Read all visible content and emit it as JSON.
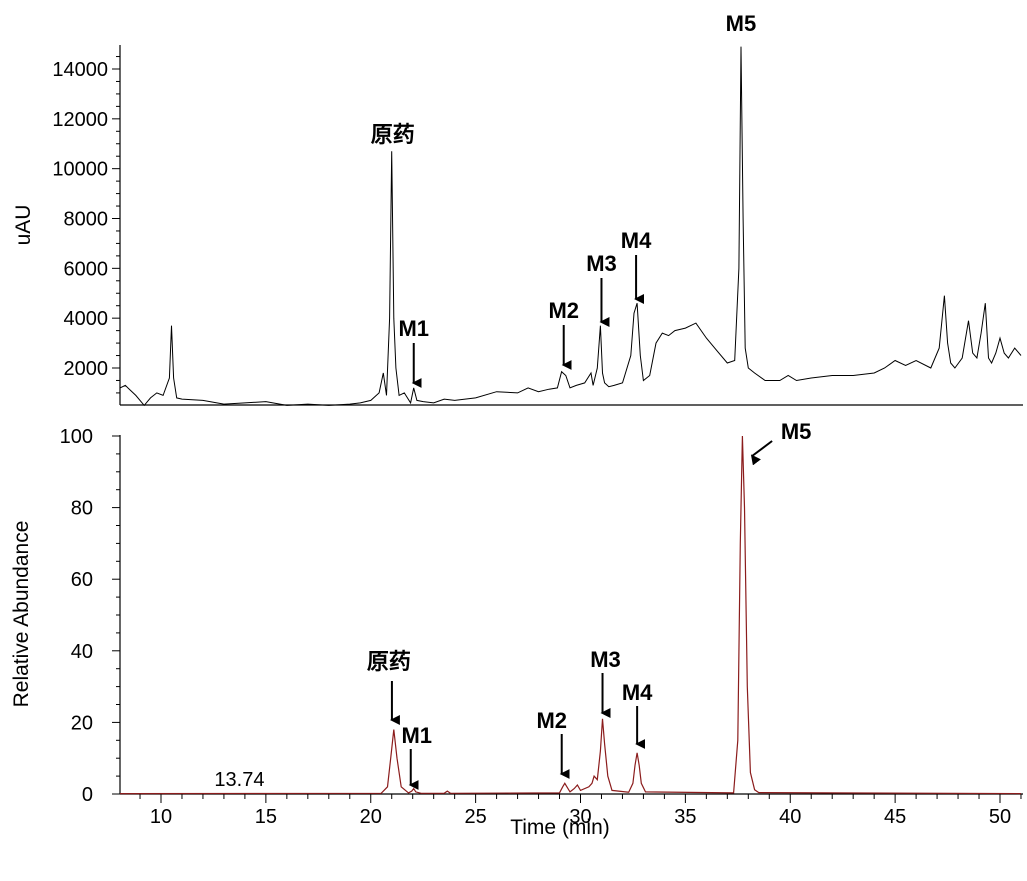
{
  "chart_data": [
    {
      "type": "line",
      "name": "uv-chromatogram",
      "ylabel": "uAU",
      "xlim": [
        7.8,
        51
      ],
      "ylim": [
        0,
        15000
      ],
      "yticks": [
        2000,
        4000,
        6000,
        8000,
        10000,
        12000,
        14000
      ],
      "yticklabels": [
        "2000",
        "4000",
        "6000",
        "8000",
        "10000",
        "12000",
        "14000"
      ],
      "line_color": "#000000",
      "series": [
        {
          "x": [
            7.8,
            8.3,
            8.8,
            9.2,
            9.5,
            9.8,
            10.1,
            10.4,
            10.5,
            10.6,
            10.75,
            11.0,
            12.0,
            13.0,
            14.0,
            15.0,
            16.0,
            17.0,
            18.0,
            19.0,
            19.5,
            20.0,
            20.4,
            20.6,
            20.75,
            20.9,
            21.0,
            21.1,
            21.2,
            21.35,
            21.6,
            21.9,
            22.05,
            22.2,
            22.5,
            23.0,
            23.5,
            24.0,
            25.0,
            26.0,
            27.0,
            27.5,
            28.0,
            28.5,
            28.9,
            29.1,
            29.3,
            29.5,
            29.8,
            30.2,
            30.5,
            30.6,
            30.8,
            30.95,
            31.05,
            31.15,
            31.35,
            31.6,
            32.0,
            32.4,
            32.55,
            32.7,
            32.85,
            33.0,
            33.3,
            33.6,
            33.9,
            34.2,
            34.5,
            35.0,
            35.5,
            36.0,
            36.5,
            37.0,
            37.35,
            37.55,
            37.65,
            37.75,
            37.85,
            38.0,
            38.3,
            38.8,
            39.5,
            39.9,
            40.3,
            41.0,
            42.0,
            43.0,
            44.0,
            44.5,
            45.0,
            45.5,
            46.0,
            46.7,
            47.1,
            47.35,
            47.5,
            47.65,
            47.85,
            48.2,
            48.5,
            48.7,
            48.9,
            49.1,
            49.3,
            49.45,
            49.6,
            49.8,
            50.0,
            50.2,
            50.4,
            50.7,
            51.0
          ],
          "y": [
            1200,
            1300,
            900,
            500,
            800,
            1000,
            900,
            1600,
            3700,
            1600,
            800,
            750,
            700,
            550,
            600,
            650,
            500,
            550,
            500,
            550,
            600,
            700,
            1000,
            1800,
            900,
            4000,
            10700,
            4000,
            2000,
            900,
            1000,
            600,
            1200,
            700,
            650,
            600,
            750,
            700,
            800,
            1050,
            1000,
            1200,
            1050,
            1150,
            1200,
            1850,
            1700,
            1200,
            1300,
            1400,
            1800,
            1300,
            2000,
            3700,
            1800,
            1400,
            1250,
            1300,
            1400,
            2500,
            4200,
            4600,
            2500,
            1500,
            1700,
            3000,
            3400,
            3300,
            3500,
            3600,
            3800,
            3200,
            2700,
            2200,
            2300,
            6000,
            14900,
            8000,
            2800,
            2000,
            1800,
            1500,
            1500,
            1700,
            1500,
            1600,
            1700,
            1700,
            1800,
            2000,
            2300,
            2100,
            2300,
            2000,
            2800,
            4900,
            3000,
            2200,
            2000,
            2400,
            3900,
            2600,
            2400,
            3400,
            4600,
            2400,
            2200,
            2600,
            3200,
            2600,
            2400,
            2800,
            2500
          ]
        }
      ],
      "annotations": [
        {
          "label": "原药",
          "x": 21.05,
          "arrow": false
        },
        {
          "label": "M1",
          "x": 22.05,
          "arrow": true
        },
        {
          "label": "M2",
          "x": 29.2,
          "arrow": true
        },
        {
          "label": "M3",
          "x": 31.0,
          "arrow": true
        },
        {
          "label": "M4",
          "x": 32.65,
          "arrow": true
        },
        {
          "label": "M5",
          "x": 37.65,
          "arrow": false
        }
      ]
    },
    {
      "type": "line",
      "name": "ms-chromatogram",
      "xlabel": "Time (min)",
      "ylabel": "Relative Abundance",
      "xlim": [
        7.8,
        51
      ],
      "ylim": [
        0,
        100
      ],
      "xticks": [
        10,
        15,
        20,
        25,
        30,
        35,
        40,
        45,
        50
      ],
      "xticklabels": [
        "10",
        "15",
        "20",
        "25",
        "30",
        "35",
        "40",
        "45",
        "50"
      ],
      "yticks": [
        0,
        20,
        40,
        60,
        80,
        100
      ],
      "yticklabels": [
        "0",
        "20",
        "40",
        "60",
        "80",
        "100"
      ],
      "line_color": "#8b1c1c",
      "series": [
        {
          "x": [
            7.8,
            20.5,
            20.8,
            20.95,
            21.1,
            21.25,
            21.45,
            21.8,
            21.95,
            22.05,
            22.15,
            22.4,
            23.5,
            23.65,
            23.8,
            29.0,
            29.15,
            29.25,
            29.35,
            29.5,
            29.7,
            29.85,
            30.0,
            30.4,
            30.55,
            30.65,
            30.8,
            30.95,
            31.05,
            31.15,
            31.3,
            31.5,
            32.3,
            32.5,
            32.6,
            32.7,
            32.8,
            32.9,
            33.1,
            37.3,
            37.5,
            37.62,
            37.72,
            37.82,
            37.95,
            38.1,
            38.3,
            38.5,
            51.0
          ],
          "y": [
            0.1,
            0.2,
            2,
            10,
            18,
            10,
            2,
            0.3,
            0.8,
            1.5,
            0.6,
            0.2,
            0.2,
            0.8,
            0.2,
            0.3,
            2,
            3,
            2,
            0.6,
            1.5,
            2.5,
            1,
            2,
            3,
            5,
            4,
            12,
            21,
            14,
            5,
            1,
            0.5,
            3,
            8,
            11.5,
            8,
            3,
            0.6,
            0.3,
            15,
            70,
            100,
            80,
            30,
            6,
            1.2,
            0.4,
            0.1
          ]
        }
      ],
      "annotations": [
        {
          "label": "原药",
          "x": 21.2,
          "arrow": true
        },
        {
          "label": "M1",
          "x": 22.05,
          "arrow": true
        },
        {
          "label": "M2",
          "x": 29.2,
          "arrow": true
        },
        {
          "label": "M3",
          "x": 31.05,
          "arrow": true
        },
        {
          "label": "M4",
          "x": 32.7,
          "arrow": true
        },
        {
          "label": "M5",
          "x": 37.8,
          "arrow": true,
          "diagonal": true
        },
        {
          "label": "13.74",
          "x": 13.74,
          "arrow": false,
          "plain": true
        }
      ]
    }
  ]
}
